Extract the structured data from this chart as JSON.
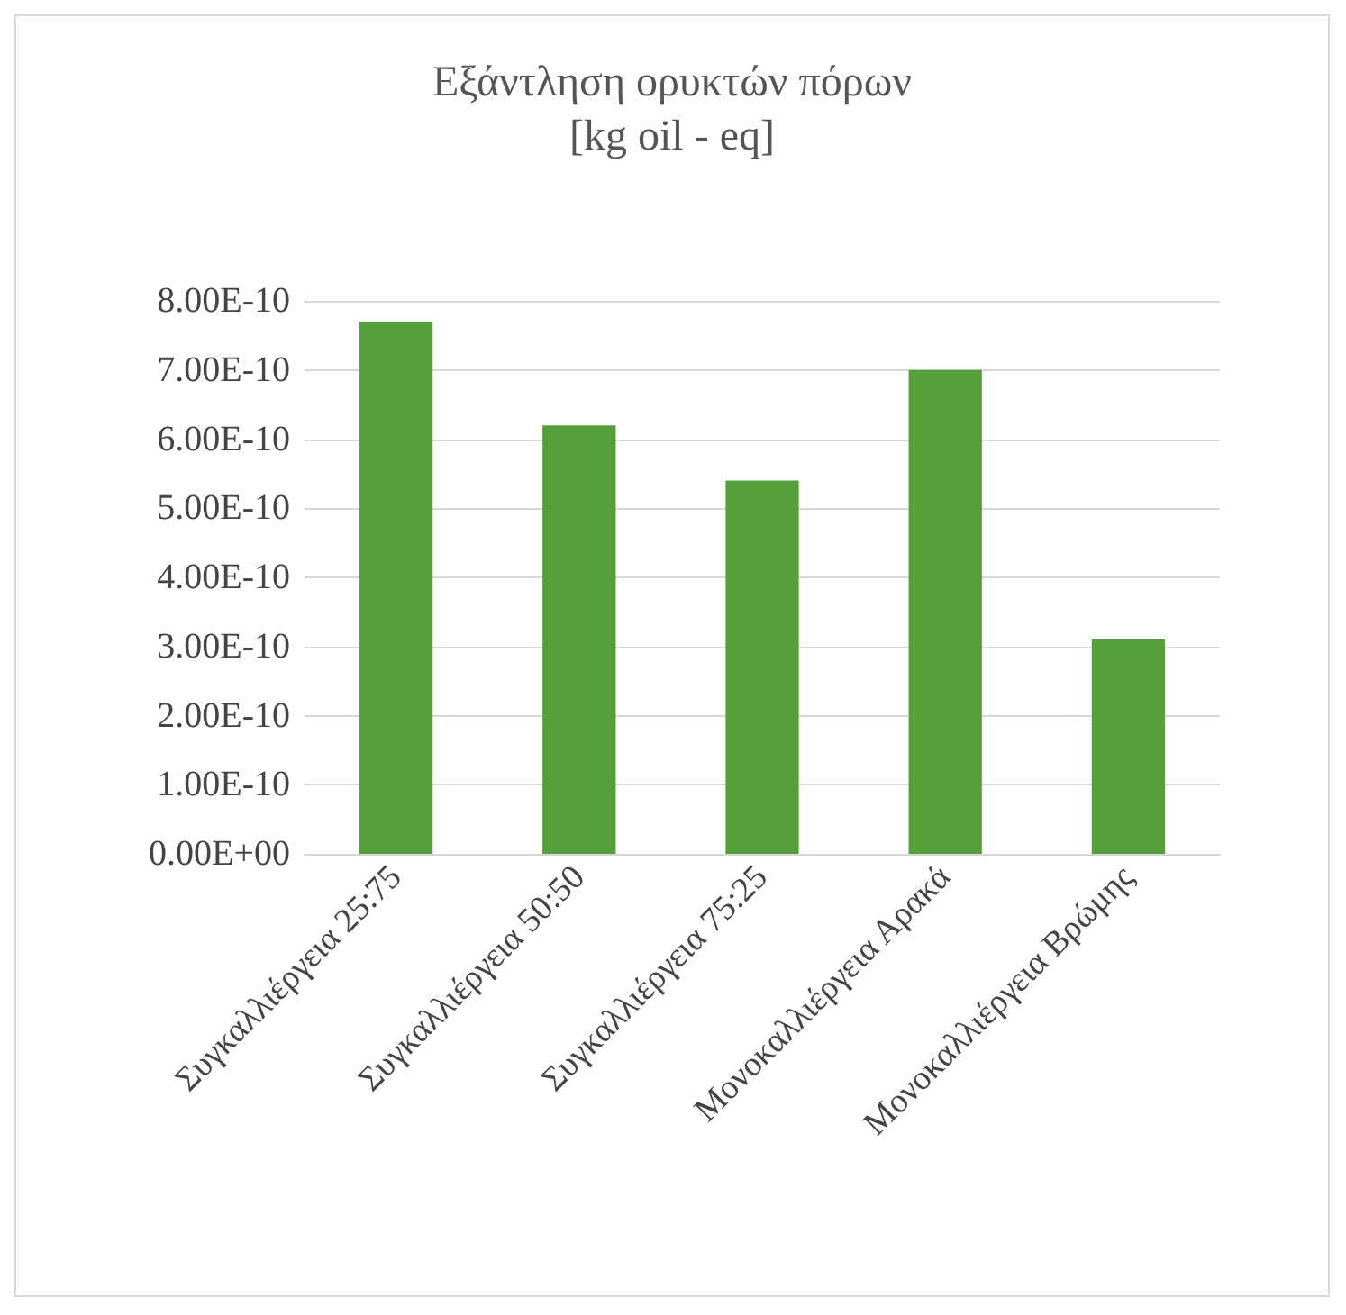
{
  "chart_data": {
    "type": "bar",
    "title": "Εξάντληση ορυκτών πόρων",
    "subtitle": "[kg oil - eq]",
    "categories": [
      "Συγκαλλιέργεια 25:75",
      "Συγκαλλιέργεια 50:50",
      "Συγκαλλιέργεια 75:25",
      "Μονοκαλλιέργεια Αρακά",
      "Μονοκαλλιέργεια Βρώμης"
    ],
    "values": [
      7.7e-10,
      6.2e-10,
      5.4e-10,
      7e-10,
      3.1e-10
    ],
    "color": "#56a03b",
    "ylim": [
      0,
      8e-10
    ],
    "yticks": [
      {
        "value": 0,
        "label": "0.00E+00"
      },
      {
        "value": 1e-10,
        "label": "1.00E-10"
      },
      {
        "value": 2e-10,
        "label": "2.00E-10"
      },
      {
        "value": 3e-10,
        "label": "3.00E-10"
      },
      {
        "value": 4e-10,
        "label": "4.00E-10"
      },
      {
        "value": 5e-10,
        "label": "5.00E-10"
      },
      {
        "value": 6e-10,
        "label": "6.00E-10"
      },
      {
        "value": 7e-10,
        "label": "7.00E-10"
      },
      {
        "value": 8e-10,
        "label": "8.00E-10"
      }
    ],
    "grid": true
  }
}
